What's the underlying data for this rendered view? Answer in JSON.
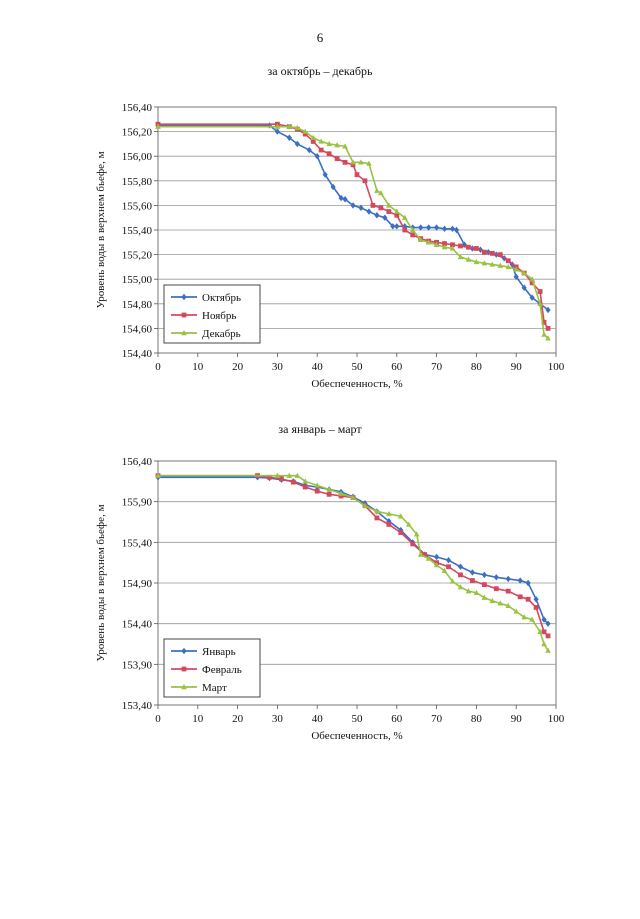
{
  "page": {
    "number": "6"
  },
  "chart_data": [
    {
      "type": "line",
      "title": "за октябрь – декабрь",
      "xlabel": "Обеспеченность, %",
      "ylabel": "Уровень воды в верхнем бьефе, м",
      "xlim": [
        0,
        100
      ],
      "ylim": [
        154.4,
        156.4
      ],
      "xticks": [
        "0",
        "10",
        "20",
        "30",
        "40",
        "50",
        "60",
        "70",
        "80",
        "90",
        "100"
      ],
      "yticks": [
        "154,40",
        "154,60",
        "154,80",
        "155,00",
        "155,20",
        "155,40",
        "155,60",
        "155,80",
        "156,00",
        "156,20",
        "156,40"
      ],
      "legend_position": "bottom-left",
      "series": [
        {
          "name": "Октябрь",
          "color": "#3b6fc4",
          "marker": "diamond",
          "x": [
            0,
            28,
            30,
            33,
            35,
            38,
            40,
            42,
            44,
            46,
            47,
            49,
            51,
            53,
            55,
            57,
            59,
            60,
            62,
            64,
            66,
            68,
            70,
            72,
            74,
            75,
            77,
            79,
            81,
            83,
            85,
            87,
            89,
            90,
            92,
            94,
            96,
            98
          ],
          "y": [
            156.25,
            156.25,
            156.2,
            156.15,
            156.1,
            156.05,
            156.0,
            155.85,
            155.75,
            155.66,
            155.65,
            155.6,
            155.58,
            155.55,
            155.52,
            155.5,
            155.43,
            155.43,
            155.43,
            155.42,
            155.42,
            155.42,
            155.42,
            155.41,
            155.41,
            155.4,
            155.28,
            155.25,
            155.24,
            155.22,
            155.2,
            155.17,
            155.12,
            155.02,
            154.93,
            154.85,
            154.8,
            154.75
          ]
        },
        {
          "name": "Ноябрь",
          "color": "#d4485f",
          "marker": "square",
          "x": [
            0,
            30,
            33,
            35,
            37,
            39,
            41,
            43,
            45,
            47,
            49,
            50,
            52,
            54,
            56,
            58,
            60,
            62,
            64,
            66,
            68,
            70,
            72,
            74,
            76,
            78,
            80,
            82,
            84,
            86,
            88,
            90,
            92,
            94,
            96,
            97,
            98
          ],
          "y": [
            156.26,
            156.26,
            156.24,
            156.22,
            156.18,
            156.12,
            156.05,
            156.02,
            155.98,
            155.95,
            155.93,
            155.85,
            155.8,
            155.6,
            155.58,
            155.55,
            155.52,
            155.4,
            155.36,
            155.33,
            155.31,
            155.3,
            155.29,
            155.28,
            155.27,
            155.26,
            155.25,
            155.22,
            155.21,
            155.2,
            155.15,
            155.1,
            155.05,
            154.97,
            154.9,
            154.65,
            154.6
          ]
        },
        {
          "name": "Декабрь",
          "color": "#99c240",
          "marker": "triangle",
          "x": [
            0,
            30,
            33,
            35,
            37,
            39,
            41,
            43,
            45,
            47,
            49,
            51,
            53,
            55,
            56,
            58,
            60,
            62,
            64,
            66,
            68,
            70,
            72,
            74,
            76,
            78,
            80,
            82,
            84,
            86,
            88,
            90,
            92,
            94,
            96,
            97,
            98
          ],
          "y": [
            156.24,
            156.24,
            156.24,
            156.23,
            156.2,
            156.15,
            156.12,
            156.1,
            156.09,
            156.08,
            155.95,
            155.95,
            155.94,
            155.72,
            155.7,
            155.6,
            155.55,
            155.5,
            155.4,
            155.32,
            155.3,
            155.28,
            155.26,
            155.25,
            155.18,
            155.16,
            155.14,
            155.13,
            155.12,
            155.11,
            155.1,
            155.08,
            155.05,
            155.0,
            154.8,
            154.55,
            154.52
          ]
        }
      ]
    },
    {
      "type": "line",
      "title": "за январь – март",
      "xlabel": "Обеспеченность, %",
      "ylabel": "Уровень воды в верхнем бьефе, м",
      "xlim": [
        0,
        100
      ],
      "ylim": [
        153.4,
        156.4
      ],
      "xticks": [
        "0",
        "10",
        "20",
        "30",
        "40",
        "50",
        "60",
        "70",
        "80",
        "90",
        "100"
      ],
      "yticks": [
        "153,40",
        "153,90",
        "154,40",
        "154,90",
        "155,40",
        "155,90",
        "156,40"
      ],
      "legend_position": "bottom-left",
      "series": [
        {
          "name": "Январь",
          "color": "#3b6fc4",
          "marker": "diamond",
          "x": [
            0,
            25,
            28,
            31,
            34,
            37,
            40,
            43,
            46,
            49,
            52,
            55,
            58,
            61,
            64,
            67,
            70,
            73,
            76,
            79,
            82,
            85,
            88,
            91,
            93,
            95,
            97,
            98
          ],
          "y": [
            156.2,
            156.2,
            156.19,
            156.17,
            156.15,
            156.1,
            156.08,
            156.05,
            156.02,
            155.96,
            155.88,
            155.78,
            155.66,
            155.55,
            155.4,
            155.25,
            155.22,
            155.18,
            155.1,
            155.03,
            155.0,
            154.97,
            154.95,
            154.93,
            154.9,
            154.7,
            154.45,
            154.4
          ]
        },
        {
          "name": "Февраль",
          "color": "#d4485f",
          "marker": "square",
          "x": [
            0,
            25,
            28,
            31,
            34,
            37,
            40,
            43,
            46,
            49,
            52,
            55,
            58,
            61,
            64,
            67,
            70,
            73,
            76,
            79,
            82,
            85,
            88,
            91,
            93,
            95,
            97,
            98
          ],
          "y": [
            156.22,
            156.22,
            156.2,
            156.18,
            156.14,
            156.08,
            156.03,
            155.99,
            155.97,
            155.95,
            155.85,
            155.7,
            155.62,
            155.52,
            155.38,
            155.25,
            155.15,
            155.1,
            155.0,
            154.93,
            154.88,
            154.83,
            154.8,
            154.73,
            154.7,
            154.6,
            154.3,
            154.25
          ]
        },
        {
          "name": "Март",
          "color": "#99c240",
          "marker": "triangle",
          "x": [
            0,
            30,
            33,
            35,
            37,
            40,
            43,
            46,
            49,
            52,
            55,
            58,
            61,
            63,
            65,
            66,
            68,
            70,
            72,
            74,
            76,
            78,
            80,
            82,
            84,
            86,
            88,
            90,
            92,
            94,
            96,
            97,
            98
          ],
          "y": [
            156.22,
            156.22,
            156.22,
            156.22,
            156.15,
            156.1,
            156.05,
            156.0,
            155.95,
            155.85,
            155.78,
            155.75,
            155.72,
            155.62,
            155.5,
            155.25,
            155.2,
            155.12,
            155.05,
            154.92,
            154.85,
            154.8,
            154.78,
            154.72,
            154.68,
            154.65,
            154.62,
            154.55,
            154.48,
            154.45,
            154.3,
            154.15,
            154.07
          ]
        }
      ]
    }
  ]
}
